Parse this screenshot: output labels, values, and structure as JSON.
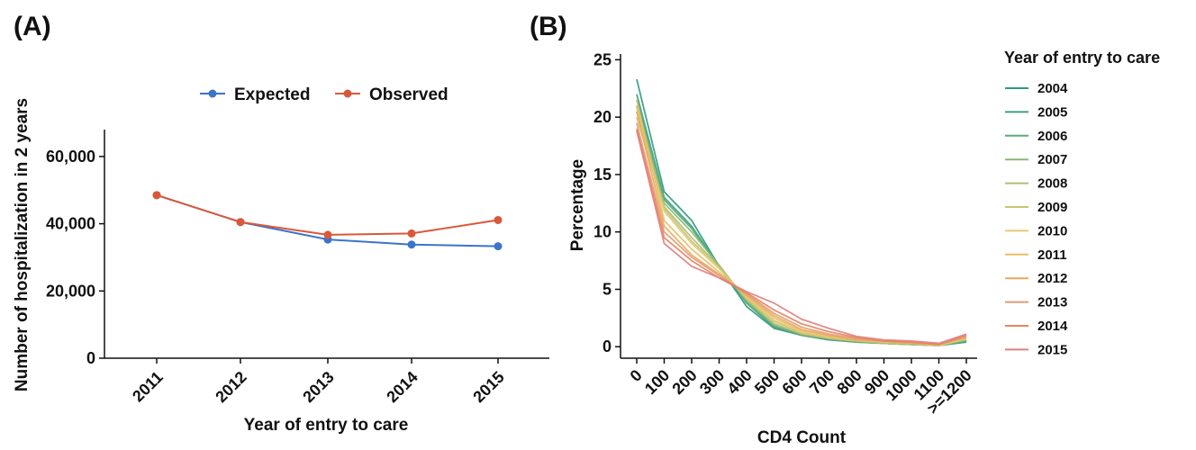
{
  "panel_a_label": "(A)",
  "panel_b_label": "(B)",
  "chart_data": [
    {
      "type": "line",
      "title": "",
      "xlabel": "Year of entry to care",
      "ylabel": "Number of hospitalization in 2 years",
      "categories": [
        "2011",
        "2012",
        "2013",
        "2014",
        "2015"
      ],
      "ylim": [
        0,
        68000
      ],
      "yticks": [
        0,
        20000,
        40000,
        60000
      ],
      "ytick_labels": [
        "0",
        "20,000",
        "40,000",
        "60,000"
      ],
      "legend_position": "top",
      "grid": false,
      "series": [
        {
          "name": "Expected",
          "color": "#3b74c9",
          "values": [
            48500,
            40500,
            35300,
            33800,
            33300
          ]
        },
        {
          "name": "Observed",
          "color": "#d9583a",
          "values": [
            48500,
            40500,
            36700,
            37100,
            41100
          ]
        }
      ]
    },
    {
      "type": "line",
      "title": "",
      "xlabel": "CD4 Count",
      "ylabel": "Percentage",
      "categories": [
        "0",
        "100",
        "200",
        "300",
        "400",
        "500",
        "600",
        "700",
        "800",
        "900",
        "1000",
        "1100",
        ">=1200"
      ],
      "ylim": [
        -1,
        25.5
      ],
      "yticks": [
        0,
        5,
        10,
        15,
        20,
        25
      ],
      "legend_title": "Year of entry to care",
      "legend_position": "right",
      "grid": false,
      "series": [
        {
          "name": "2004",
          "color": "#2e9a83",
          "values": [
            23.3,
            13.5,
            11.0,
            7.0,
            3.5,
            1.6,
            1.0,
            0.6,
            0.5,
            0.3,
            0.2,
            0.1,
            0.4
          ]
        },
        {
          "name": "2005",
          "color": "#3f9f7c",
          "values": [
            22.0,
            13.0,
            10.5,
            7.0,
            3.8,
            1.7,
            1.0,
            0.6,
            0.4,
            0.3,
            0.2,
            0.1,
            0.5
          ]
        },
        {
          "name": "2006",
          "color": "#5aa978",
          "values": [
            21.5,
            12.8,
            10.3,
            7.0,
            3.9,
            1.8,
            1.0,
            0.7,
            0.4,
            0.3,
            0.2,
            0.1,
            0.5
          ]
        },
        {
          "name": "2007",
          "color": "#8ab874",
          "values": [
            21.0,
            12.5,
            10.0,
            7.1,
            4.0,
            1.9,
            1.1,
            0.7,
            0.5,
            0.3,
            0.2,
            0.1,
            0.6
          ]
        },
        {
          "name": "2008",
          "color": "#aebe77",
          "values": [
            20.5,
            12.2,
            9.5,
            7.0,
            4.1,
            2.0,
            1.1,
            0.7,
            0.5,
            0.3,
            0.2,
            0.1,
            0.6
          ]
        },
        {
          "name": "2009",
          "color": "#c9c76f",
          "values": [
            20.0,
            12.0,
            9.2,
            6.9,
            4.2,
            2.2,
            1.2,
            0.8,
            0.5,
            0.4,
            0.3,
            0.1,
            0.7
          ]
        },
        {
          "name": "2010",
          "color": "#e3c974",
          "values": [
            20.8,
            11.8,
            9.0,
            6.8,
            4.3,
            2.3,
            1.3,
            0.8,
            0.6,
            0.4,
            0.3,
            0.1,
            0.7
          ]
        },
        {
          "name": "2011",
          "color": "#e8bf68",
          "values": [
            21.5,
            11.0,
            8.5,
            6.5,
            4.4,
            2.5,
            1.4,
            0.9,
            0.6,
            0.4,
            0.3,
            0.2,
            0.8
          ]
        },
        {
          "name": "2012",
          "color": "#e9aa5e",
          "values": [
            20.5,
            10.5,
            8.0,
            6.3,
            4.5,
            2.7,
            1.5,
            1.0,
            0.6,
            0.5,
            0.3,
            0.2,
            0.8
          ]
        },
        {
          "name": "2013",
          "color": "#e29a78",
          "values": [
            19.5,
            10.0,
            7.8,
            6.2,
            4.6,
            2.9,
            1.7,
            1.1,
            0.7,
            0.5,
            0.4,
            0.2,
            0.9
          ]
        },
        {
          "name": "2014",
          "color": "#e6855c",
          "values": [
            19.0,
            9.5,
            7.5,
            6.0,
            4.7,
            3.2,
            2.0,
            1.3,
            0.8,
            0.5,
            0.4,
            0.2,
            1.0
          ]
        },
        {
          "name": "2015",
          "color": "#e08080",
          "values": [
            18.8,
            9.0,
            7.0,
            6.0,
            4.8,
            3.8,
            2.4,
            1.6,
            0.9,
            0.6,
            0.5,
            0.3,
            1.1
          ]
        }
      ]
    }
  ]
}
